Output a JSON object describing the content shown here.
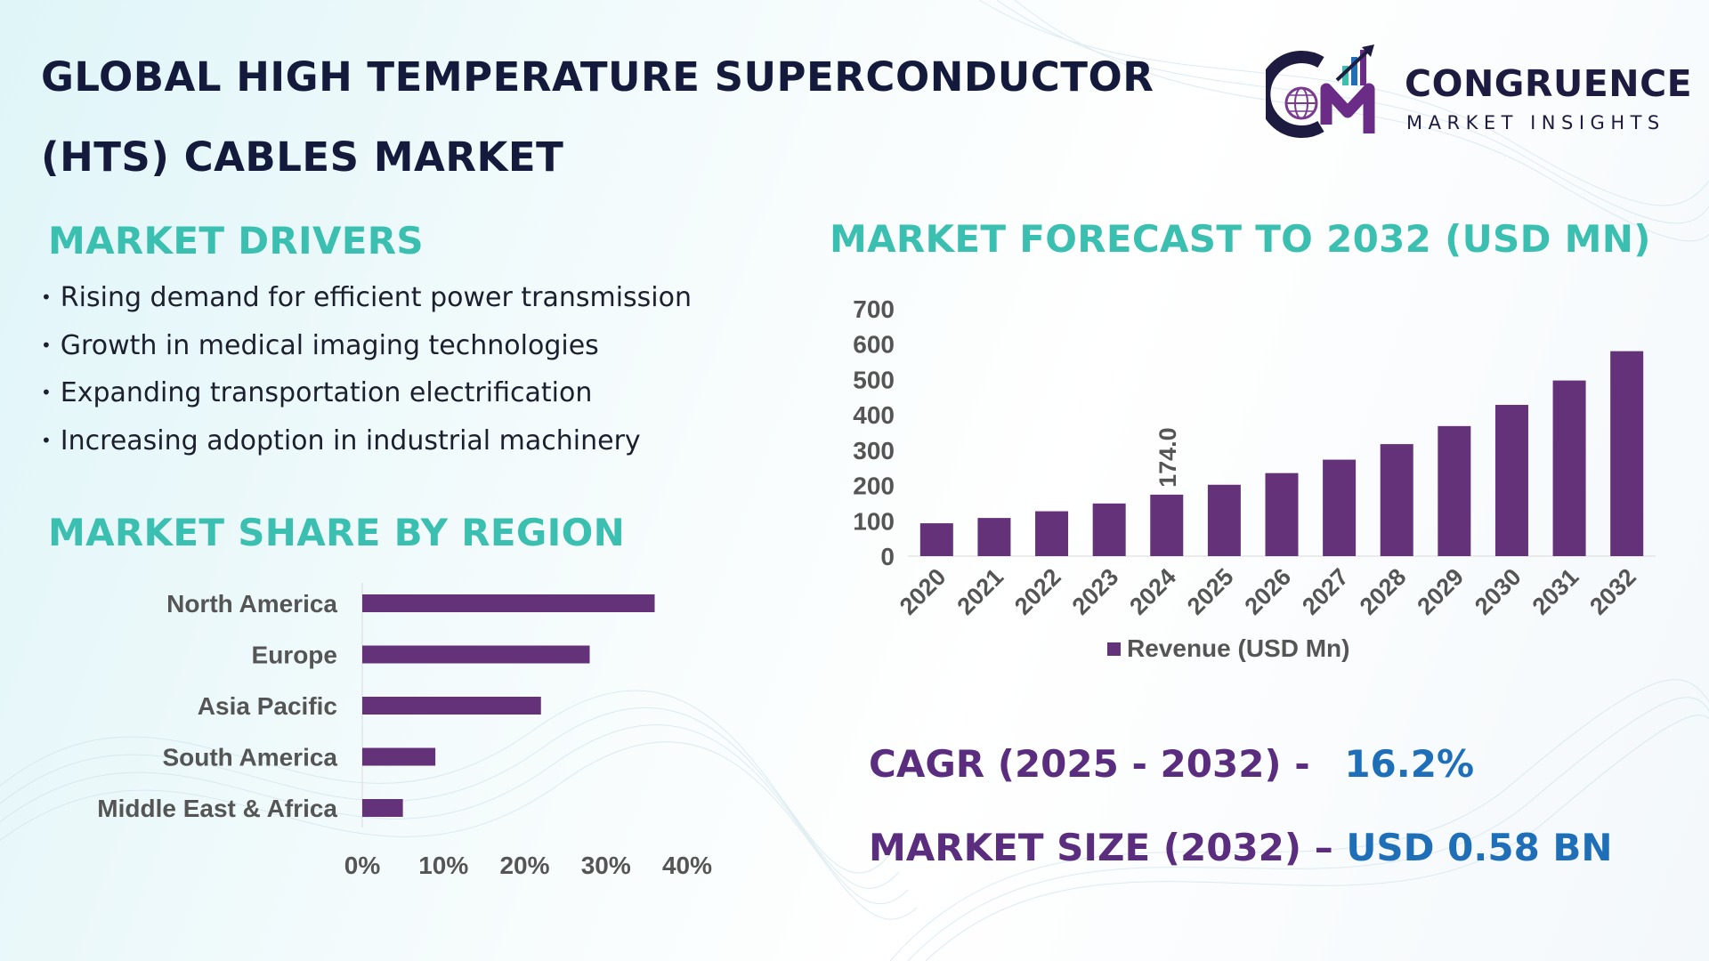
{
  "title": {
    "line1": "GLOBAL HIGH TEMPERATURE SUPERCONDUCTOR",
    "line2": "(HTS) CABLES MARKET"
  },
  "logo": {
    "name": "CONGRUENCE",
    "tagline": "MARKET INSIGHTS",
    "icon": "cm-globe-logo-icon"
  },
  "drivers": {
    "heading": "MARKET DRIVERS",
    "bullet": "•",
    "items": [
      "Rising demand for efficient power transmission",
      "Growth in medical imaging technologies",
      "Expanding transportation electrification",
      "Increasing adoption in industrial machinery"
    ]
  },
  "region": {
    "heading": "MARKET SHARE BY REGION"
  },
  "forecast": {
    "heading": "MARKET FORECAST TO 2032 (USD MN)"
  },
  "stats": {
    "cagr_label": "CAGR (2025 - 2032) -",
    "cagr_value": "16.2%",
    "size_label": "MARKET SIZE (2032) –",
    "size_value": "USD 0.58 BN"
  },
  "colors": {
    "bar": "#633279",
    "heading_teal": "#3bbfb0",
    "title_navy": "#141a3c",
    "stat_purple": "#5a2d7e",
    "stat_blue": "#1f6fb8"
  },
  "chart_data": [
    {
      "type": "bar",
      "orientation": "horizontal",
      "title": "MARKET SHARE BY REGION",
      "categories": [
        "North America",
        "Europe",
        "Asia Pacific",
        "South America",
        "Middle East & Africa"
      ],
      "values": [
        36,
        28,
        22,
        9,
        5
      ],
      "xlim": [
        0,
        40
      ],
      "xticks": [
        "0%",
        "10%",
        "20%",
        "30%",
        "40%"
      ],
      "grid": false
    },
    {
      "type": "bar",
      "orientation": "vertical",
      "title": "MARKET FORECAST TO 2032 (USD MN)",
      "categories": [
        "2020",
        "2021",
        "2022",
        "2023",
        "2024",
        "2025",
        "2026",
        "2027",
        "2028",
        "2029",
        "2030",
        "2031",
        "2032"
      ],
      "series": [
        {
          "name": "Revenue (USD Mn)",
          "values": [
            93,
            108,
            127,
            149,
            174,
            202,
            235,
            273,
            317,
            368,
            428,
            497,
            580
          ]
        }
      ],
      "ylim": [
        0,
        700
      ],
      "yticks": [
        "0",
        "100",
        "200",
        "300",
        "400",
        "500",
        "600",
        "700"
      ],
      "data_labels": [
        {
          "index": 4,
          "text": "174.0"
        }
      ],
      "legend": "bottom-center",
      "grid": false
    }
  ]
}
